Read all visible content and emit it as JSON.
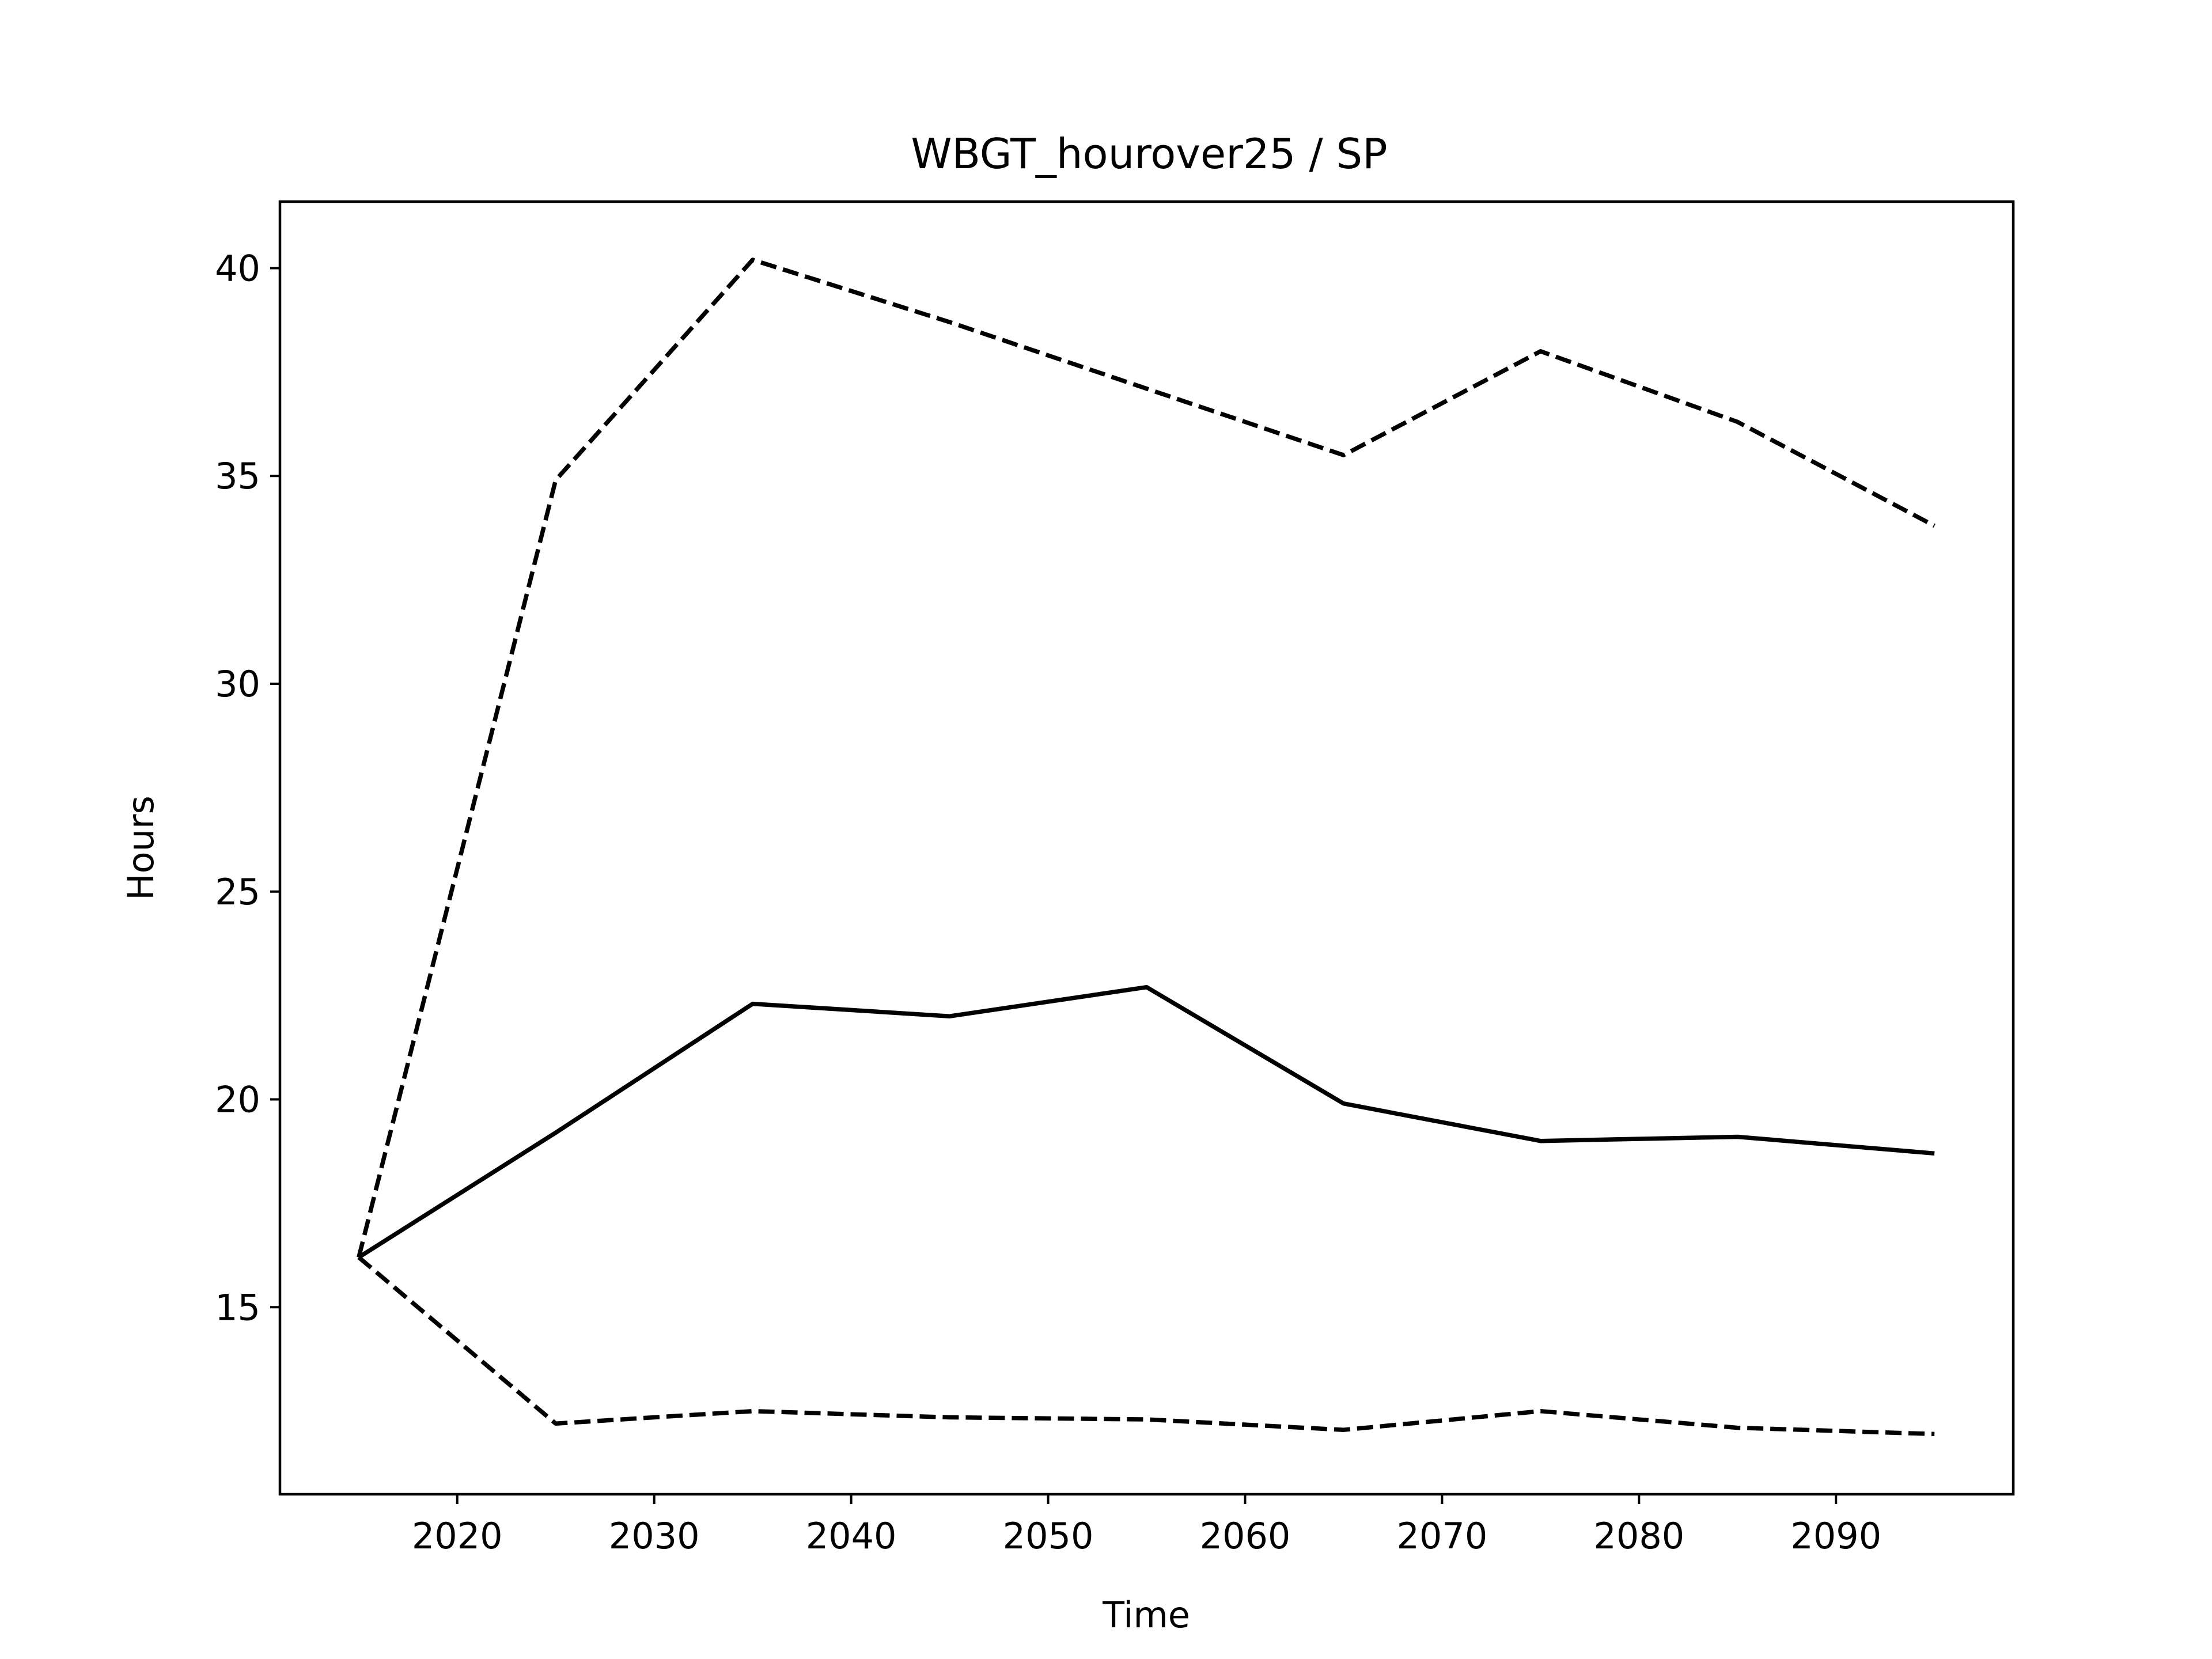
{
  "chart_data": {
    "type": "line",
    "title": "WBGT_hourover25 / SP",
    "xlabel": "Time",
    "ylabel": "Hours",
    "x": [
      2015,
      2025,
      2035,
      2045,
      2055,
      2065,
      2075,
      2085,
      2095
    ],
    "xlim": [
      2011.0,
      2099.0
    ],
    "ylim": [
      10.5,
      41.6
    ],
    "xticks": [
      2020,
      2030,
      2040,
      2050,
      2060,
      2070,
      2080,
      2090
    ],
    "yticks": [
      15,
      20,
      25,
      30,
      35,
      40
    ],
    "grid": false,
    "series": [
      {
        "style": "solid",
        "color": "#000000",
        "values": [
          16.2,
          19.2,
          22.3,
          22.0,
          22.7,
          19.9,
          19.0,
          19.1,
          18.7
        ]
      },
      {
        "style": "dashed",
        "color": "#000000",
        "values": [
          16.2,
          34.9,
          40.2,
          38.7,
          37.1,
          35.5,
          38.0,
          36.3,
          33.8
        ]
      },
      {
        "style": "dashed",
        "color": "#000000",
        "values": [
          16.2,
          12.2,
          12.5,
          12.35,
          12.3,
          12.05,
          12.5,
          12.1,
          11.95
        ]
      }
    ]
  }
}
